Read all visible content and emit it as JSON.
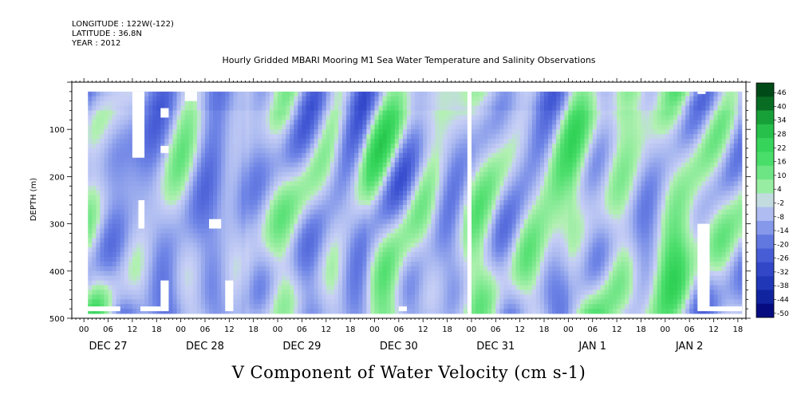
{
  "header": {
    "longitude": "LONGITUDE : 122W(-122)",
    "latitude": "LATITUDE : 36.8N",
    "year": "YEAR : 2012"
  },
  "chart_data": {
    "type": "heatmap",
    "title": "Hourly Gridded MBARI Mooring M1 Sea Water Temperature and Salinity Observations",
    "variable_title": "V Component of Water Velocity (cm s-1)",
    "ylabel": "DEPTH (m)",
    "ylim": [
      0,
      500
    ],
    "y_ticks": [
      100,
      200,
      300,
      400,
      500
    ],
    "x_hour_ticks": [
      "00",
      "06",
      "12",
      "18",
      "00",
      "06",
      "12",
      "18",
      "00",
      "06",
      "12",
      "18",
      "00",
      "06",
      "12",
      "18",
      "00",
      "06",
      "12",
      "18",
      "00",
      "06",
      "12",
      "18",
      "00",
      "06",
      "12",
      "18"
    ],
    "x_day_labels": [
      "DEC 27",
      "DEC 28",
      "DEC 29",
      "DEC 30",
      "DEC 31",
      "JAN  1",
      "JAN  2"
    ],
    "x_range_hours": [
      -3,
      164
    ],
    "data_range_hours": [
      1,
      163
    ],
    "depth_range": [
      20,
      485
    ],
    "colorbar_levels": [
      "46",
      "40",
      "34",
      "28",
      "22",
      "16",
      "10",
      "4",
      "-2",
      "-8",
      "-14",
      "-20",
      "-26",
      "-32",
      "-38",
      "-44",
      "-50"
    ],
    "colors": {
      "strong_negative": "#000070",
      "negative": "#3a4fd0",
      "weak_negative": "#a9b8f0",
      "zero": "#c8d0f5",
      "weak_positive": "#90ec9c",
      "positive": "#2ed054",
      "strong_positive": "#004a18"
    }
  }
}
